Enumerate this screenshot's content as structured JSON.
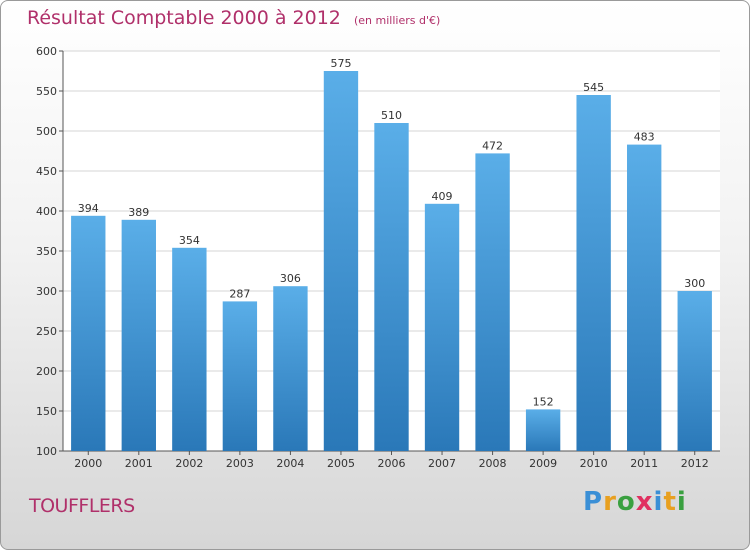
{
  "chart_data": {
    "type": "bar",
    "title": "Résultat Comptable 2000 à 2012",
    "subtitle": "(en milliers d'€)",
    "categories": [
      "2000",
      "2001",
      "2002",
      "2003",
      "2004",
      "2005",
      "2006",
      "2007",
      "2008",
      "2009",
      "2010",
      "2011",
      "2012"
    ],
    "values": [
      394,
      389,
      354,
      287,
      306,
      575,
      510,
      409,
      472,
      152,
      545,
      483,
      300
    ],
    "yticks": [
      100,
      150,
      200,
      250,
      300,
      350,
      400,
      450,
      500,
      550,
      600
    ],
    "ylim": [
      100,
      600
    ],
    "xlabel": "",
    "ylabel": "",
    "grid": true,
    "bar_color_top": "#5aaee8",
    "bar_color_bottom": "#2a78b8"
  },
  "footer": {
    "town": "TOUFFLERS",
    "logo_letters": [
      "P",
      "r",
      "o",
      "x",
      "i",
      "t",
      "i"
    ],
    "logo_colors": [
      "#3a8fd6",
      "#e8a020",
      "#3aa040",
      "#e03060",
      "#3a8fd6",
      "#e8a020",
      "#3aa040"
    ]
  }
}
